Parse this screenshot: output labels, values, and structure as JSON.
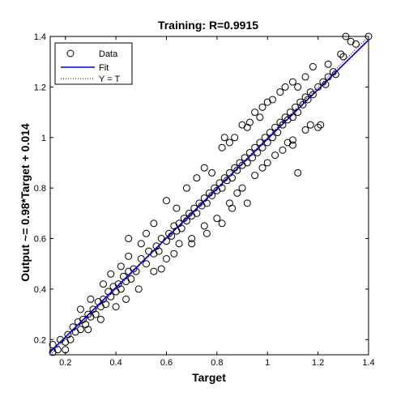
{
  "chart_data": {
    "type": "scatter",
    "title": "Training: R=0.9915",
    "xlabel": "Target",
    "ylabel": "Output ~= 0.98*Target + 0.014",
    "xlim": [
      0.14,
      1.4
    ],
    "ylim": [
      0.14,
      1.4
    ],
    "xticks": [
      "0.2",
      "0.4",
      "0.6",
      "0.8",
      "1",
      "1.2",
      "1.4"
    ],
    "yticks": [
      "0.2",
      "0.4",
      "0.6",
      "0.8",
      "1",
      "1.2",
      "1.4"
    ],
    "grid": false,
    "legend": {
      "placement": "top-left",
      "entries": [
        "Data",
        "Fit",
        "Y = T"
      ]
    },
    "series": [
      {
        "name": "Data",
        "marker": "circle",
        "color": "#000000",
        "points": [
          [
            0.15,
            0.15
          ],
          [
            0.15,
            0.18
          ],
          [
            0.17,
            0.16
          ],
          [
            0.18,
            0.2
          ],
          [
            0.2,
            0.19
          ],
          [
            0.21,
            0.22
          ],
          [
            0.22,
            0.2
          ],
          [
            0.23,
            0.25
          ],
          [
            0.24,
            0.23
          ],
          [
            0.25,
            0.27
          ],
          [
            0.26,
            0.24
          ],
          [
            0.27,
            0.28
          ],
          [
            0.28,
            0.26
          ],
          [
            0.29,
            0.3
          ],
          [
            0.3,
            0.29
          ],
          [
            0.31,
            0.32
          ],
          [
            0.32,
            0.3
          ],
          [
            0.33,
            0.35
          ],
          [
            0.34,
            0.33
          ],
          [
            0.35,
            0.36
          ],
          [
            0.36,
            0.34
          ],
          [
            0.37,
            0.39
          ],
          [
            0.38,
            0.37
          ],
          [
            0.39,
            0.41
          ],
          [
            0.4,
            0.39
          ],
          [
            0.41,
            0.42
          ],
          [
            0.42,
            0.4
          ],
          [
            0.43,
            0.45
          ],
          [
            0.44,
            0.43
          ],
          [
            0.45,
            0.47
          ],
          [
            0.46,
            0.44
          ],
          [
            0.47,
            0.48
          ],
          [
            0.48,
            0.47
          ],
          [
            0.5,
            0.52
          ],
          [
            0.52,
            0.5
          ],
          [
            0.53,
            0.55
          ],
          [
            0.55,
            0.54
          ],
          [
            0.56,
            0.57
          ],
          [
            0.57,
            0.55
          ],
          [
            0.58,
            0.6
          ],
          [
            0.6,
            0.59
          ],
          [
            0.61,
            0.62
          ],
          [
            0.62,
            0.61
          ],
          [
            0.63,
            0.65
          ],
          [
            0.64,
            0.63
          ],
          [
            0.65,
            0.66
          ],
          [
            0.66,
            0.64
          ],
          [
            0.67,
            0.68
          ],
          [
            0.68,
            0.67
          ],
          [
            0.69,
            0.7
          ],
          [
            0.7,
            0.69
          ],
          [
            0.71,
            0.72
          ],
          [
            0.72,
            0.7
          ],
          [
            0.73,
            0.74
          ],
          [
            0.74,
            0.73
          ],
          [
            0.75,
            0.76
          ],
          [
            0.76,
            0.74
          ],
          [
            0.77,
            0.78
          ],
          [
            0.78,
            0.77
          ],
          [
            0.79,
            0.8
          ],
          [
            0.8,
            0.79
          ],
          [
            0.81,
            0.82
          ],
          [
            0.82,
            0.8
          ],
          [
            0.83,
            0.84
          ],
          [
            0.84,
            0.83
          ],
          [
            0.85,
            0.86
          ],
          [
            0.86,
            0.84
          ],
          [
            0.87,
            0.88
          ],
          [
            0.88,
            0.87
          ],
          [
            0.89,
            0.9
          ],
          [
            0.9,
            0.89
          ],
          [
            0.91,
            0.92
          ],
          [
            0.92,
            0.9
          ],
          [
            0.93,
            0.94
          ],
          [
            0.94,
            0.92
          ],
          [
            0.95,
            0.96
          ],
          [
            0.96,
            0.94
          ],
          [
            0.97,
            0.98
          ],
          [
            0.98,
            0.96
          ],
          [
            0.99,
            1.0
          ],
          [
            1.0,
            0.98
          ],
          [
            1.01,
            1.02
          ],
          [
            1.02,
            1.0
          ],
          [
            1.03,
            1.04
          ],
          [
            1.04,
            1.02
          ],
          [
            1.05,
            1.06
          ],
          [
            1.06,
            1.05
          ],
          [
            1.07,
            1.08
          ],
          [
            1.08,
            1.07
          ],
          [
            1.09,
            1.1
          ],
          [
            1.1,
            1.08
          ],
          [
            1.11,
            1.12
          ],
          [
            1.12,
            1.1
          ],
          [
            1.13,
            1.14
          ],
          [
            1.14,
            1.13
          ],
          [
            1.15,
            1.16
          ],
          [
            1.16,
            1.15
          ],
          [
            1.17,
            1.18
          ],
          [
            1.18,
            1.17
          ],
          [
            1.2,
            1.2
          ],
          [
            1.22,
            1.22
          ],
          [
            1.24,
            1.24
          ],
          [
            1.26,
            1.26
          ],
          [
            1.3,
            1.32
          ],
          [
            1.33,
            1.38
          ],
          [
            1.35,
            1.37
          ],
          [
            1.4,
            1.4
          ],
          [
            1.29,
            1.33
          ],
          [
            1.27,
            1.25
          ],
          [
            1.23,
            1.21
          ],
          [
            0.6,
            0.75
          ],
          [
            0.64,
            0.72
          ],
          [
            0.75,
            0.88
          ],
          [
            0.78,
            0.86
          ],
          [
            0.82,
            0.96
          ],
          [
            0.83,
            1.0
          ],
          [
            0.85,
            0.98
          ],
          [
            0.9,
            1.05
          ],
          [
            0.92,
            1.04
          ],
          [
            0.95,
            1.1
          ],
          [
            0.98,
            1.12
          ],
          [
            1.0,
            1.14
          ],
          [
            1.02,
            1.15
          ],
          [
            1.05,
            1.18
          ],
          [
            1.07,
            1.2
          ],
          [
            1.1,
            1.22
          ],
          [
            1.12,
            1.2
          ],
          [
            1.15,
            1.24
          ],
          [
            0.5,
            0.58
          ],
          [
            0.52,
            0.62
          ],
          [
            0.45,
            0.53
          ],
          [
            0.42,
            0.49
          ],
          [
            0.38,
            0.46
          ],
          [
            0.35,
            0.42
          ],
          [
            0.3,
            0.36
          ],
          [
            0.26,
            0.32
          ],
          [
            0.55,
            0.47
          ],
          [
            0.6,
            0.52
          ],
          [
            0.65,
            0.58
          ],
          [
            0.7,
            0.6
          ],
          [
            0.75,
            0.65
          ],
          [
            0.8,
            0.68
          ],
          [
            0.85,
            0.74
          ],
          [
            0.88,
            0.78
          ],
          [
            0.9,
            0.8
          ],
          [
            0.95,
            0.85
          ],
          [
            0.98,
            0.88
          ],
          [
            1.0,
            0.9
          ],
          [
            1.03,
            0.93
          ],
          [
            1.06,
            0.95
          ],
          [
            1.08,
            0.98
          ],
          [
            1.1,
            0.97
          ],
          [
            1.15,
            1.03
          ],
          [
            1.2,
            1.04
          ],
          [
            1.21,
            1.05
          ],
          [
            1.17,
            1.05
          ],
          [
            1.12,
            0.86
          ],
          [
            1.1,
            0.99
          ],
          [
            0.92,
            0.74
          ],
          [
            0.86,
            0.72
          ],
          [
            0.82,
            0.66
          ],
          [
            0.76,
            0.62
          ],
          [
            0.7,
            0.58
          ],
          [
            0.63,
            0.54
          ],
          [
            0.58,
            0.48
          ],
          [
            0.49,
            0.4
          ],
          [
            0.44,
            0.36
          ],
          [
            0.4,
            0.33
          ],
          [
            0.34,
            0.28
          ],
          [
            0.29,
            0.24
          ],
          [
            0.2,
            0.16
          ],
          [
            0.45,
            0.6
          ],
          [
            0.55,
            0.66
          ],
          [
            0.68,
            0.8
          ],
          [
            0.72,
            0.84
          ],
          [
            0.87,
            1.0
          ],
          [
            0.93,
            1.06
          ],
          [
            0.97,
            1.08
          ],
          [
            1.18,
            1.28
          ],
          [
            1.24,
            1.29
          ],
          [
            1.31,
            1.4
          ]
        ]
      },
      {
        "name": "Fit",
        "line": "solid",
        "color": "#0000cc",
        "slope": 0.98,
        "intercept": 0.014
      },
      {
        "name": "Y = T",
        "line": "dotted",
        "color": "#000000",
        "slope": 1,
        "intercept": 0
      }
    ]
  }
}
